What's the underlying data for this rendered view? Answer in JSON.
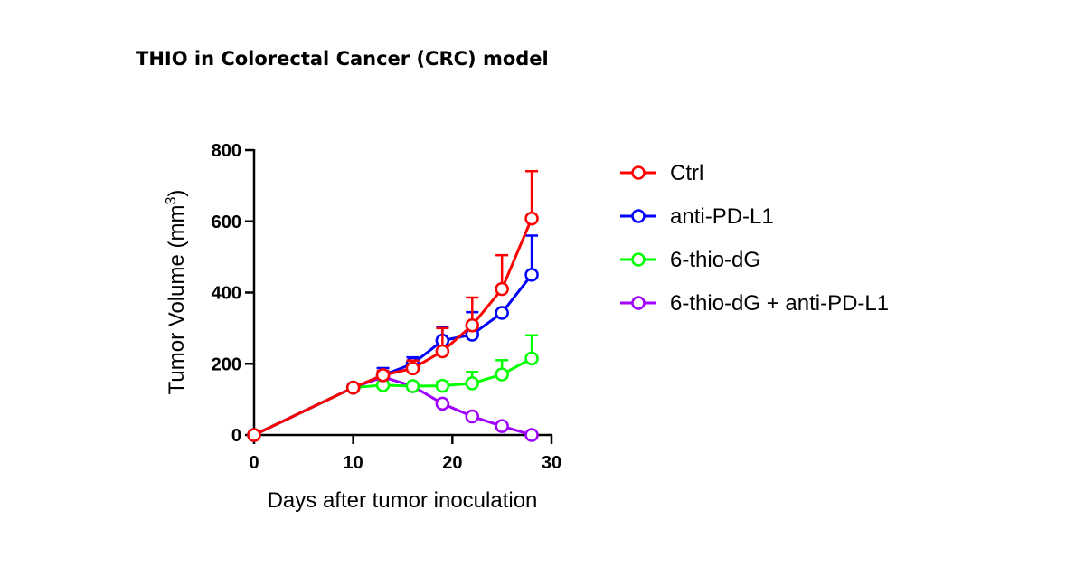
{
  "page": {
    "title": "THIO in Colorectal Cancer (CRC) model"
  },
  "chart_data": {
    "type": "line",
    "title": "THIO in Colorectal Cancer (CRC) model",
    "xlabel": "Days after tumor inoculation",
    "ylabel_prefix": "Tumor Volume (mm",
    "ylabel_sup": "3",
    "ylabel_suffix": ")",
    "xlim": [
      0,
      30
    ],
    "ylim": [
      0,
      800
    ],
    "xticks": [
      0,
      10,
      20,
      30
    ],
    "yticks": [
      0,
      200,
      400,
      600,
      800
    ],
    "grid": false,
    "legend_position": "right",
    "series": [
      {
        "name": "Ctrl",
        "color": "#ff0000",
        "x": [
          0,
          10,
          13,
          16,
          19,
          22,
          25,
          28
        ],
        "y": [
          0,
          133,
          168,
          187,
          235,
          308,
          410,
          608
        ],
        "err": [
          0,
          0,
          12,
          22,
          65,
          78,
          95,
          133
        ]
      },
      {
        "name": "anti-PD-L1",
        "color": "#0000ff",
        "x": [
          0,
          10,
          13,
          16,
          19,
          22,
          25,
          28
        ],
        "y": [
          0,
          133,
          168,
          200,
          265,
          282,
          343,
          450
        ],
        "err": [
          0,
          0,
          20,
          18,
          38,
          63,
          0,
          110
        ]
      },
      {
        "name": "6-thio-dG",
        "color": "#00ff00",
        "x": [
          0,
          10,
          13,
          16,
          19,
          22,
          25,
          28
        ],
        "y": [
          0,
          133,
          140,
          137,
          138,
          145,
          170,
          215
        ],
        "err": [
          0,
          0,
          0,
          0,
          12,
          32,
          40,
          65
        ]
      },
      {
        "name": "6-thio-dG + anti-PD-L1",
        "color": "#a000ff",
        "x": [
          0,
          10,
          13,
          16,
          19,
          22,
          25,
          28
        ],
        "y": [
          0,
          133,
          163,
          137,
          88,
          52,
          25,
          0
        ],
        "err": [
          0,
          0,
          0,
          0,
          0,
          0,
          0,
          0
        ]
      }
    ]
  }
}
